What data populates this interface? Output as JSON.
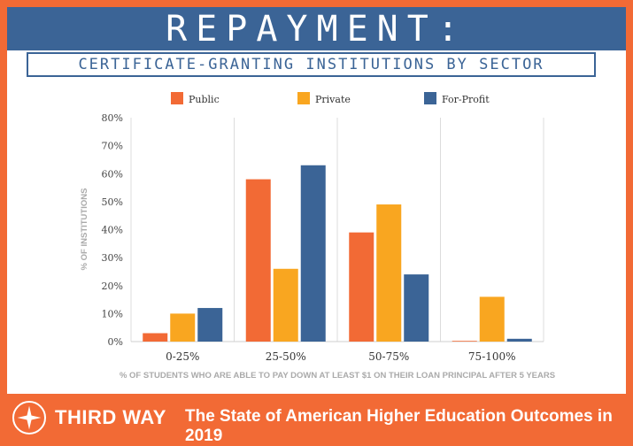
{
  "header": {
    "title": "REPAYMENT:",
    "subtitle": "CERTIFICATE-GRANTING INSTITUTIONS BY SECTOR"
  },
  "footer": {
    "brand": "THIRD WAY",
    "tagline": "The State of American Higher Education Outcomes in 2019"
  },
  "colors": {
    "public": "#f26a35",
    "private": "#f9a620",
    "for_profit": "#3b6496"
  },
  "chart_data": {
    "type": "bar",
    "categories": [
      "0-25%",
      "25-50%",
      "50-75%",
      "75-100%"
    ],
    "series": [
      {
        "name": "Public",
        "values": [
          3,
          58,
          39,
          0
        ]
      },
      {
        "name": "Private",
        "values": [
          10,
          26,
          49,
          16
        ]
      },
      {
        "name": "For-Profit",
        "values": [
          12,
          63,
          24,
          1
        ]
      }
    ],
    "yticks": [
      "0%",
      "10%",
      "20%",
      "30%",
      "40%",
      "50%",
      "60%",
      "70%",
      "80%"
    ],
    "ylim": [
      0,
      80
    ],
    "xlabel": "% OF STUDENTS WHO ARE ABLE TO PAY DOWN AT LEAST $1 ON THEIR LOAN PRINCIPAL AFTER 5 YEARS",
    "ylabel": "% OF INSTITUTIONS",
    "legend_position": "top",
    "grid": "vertical"
  }
}
